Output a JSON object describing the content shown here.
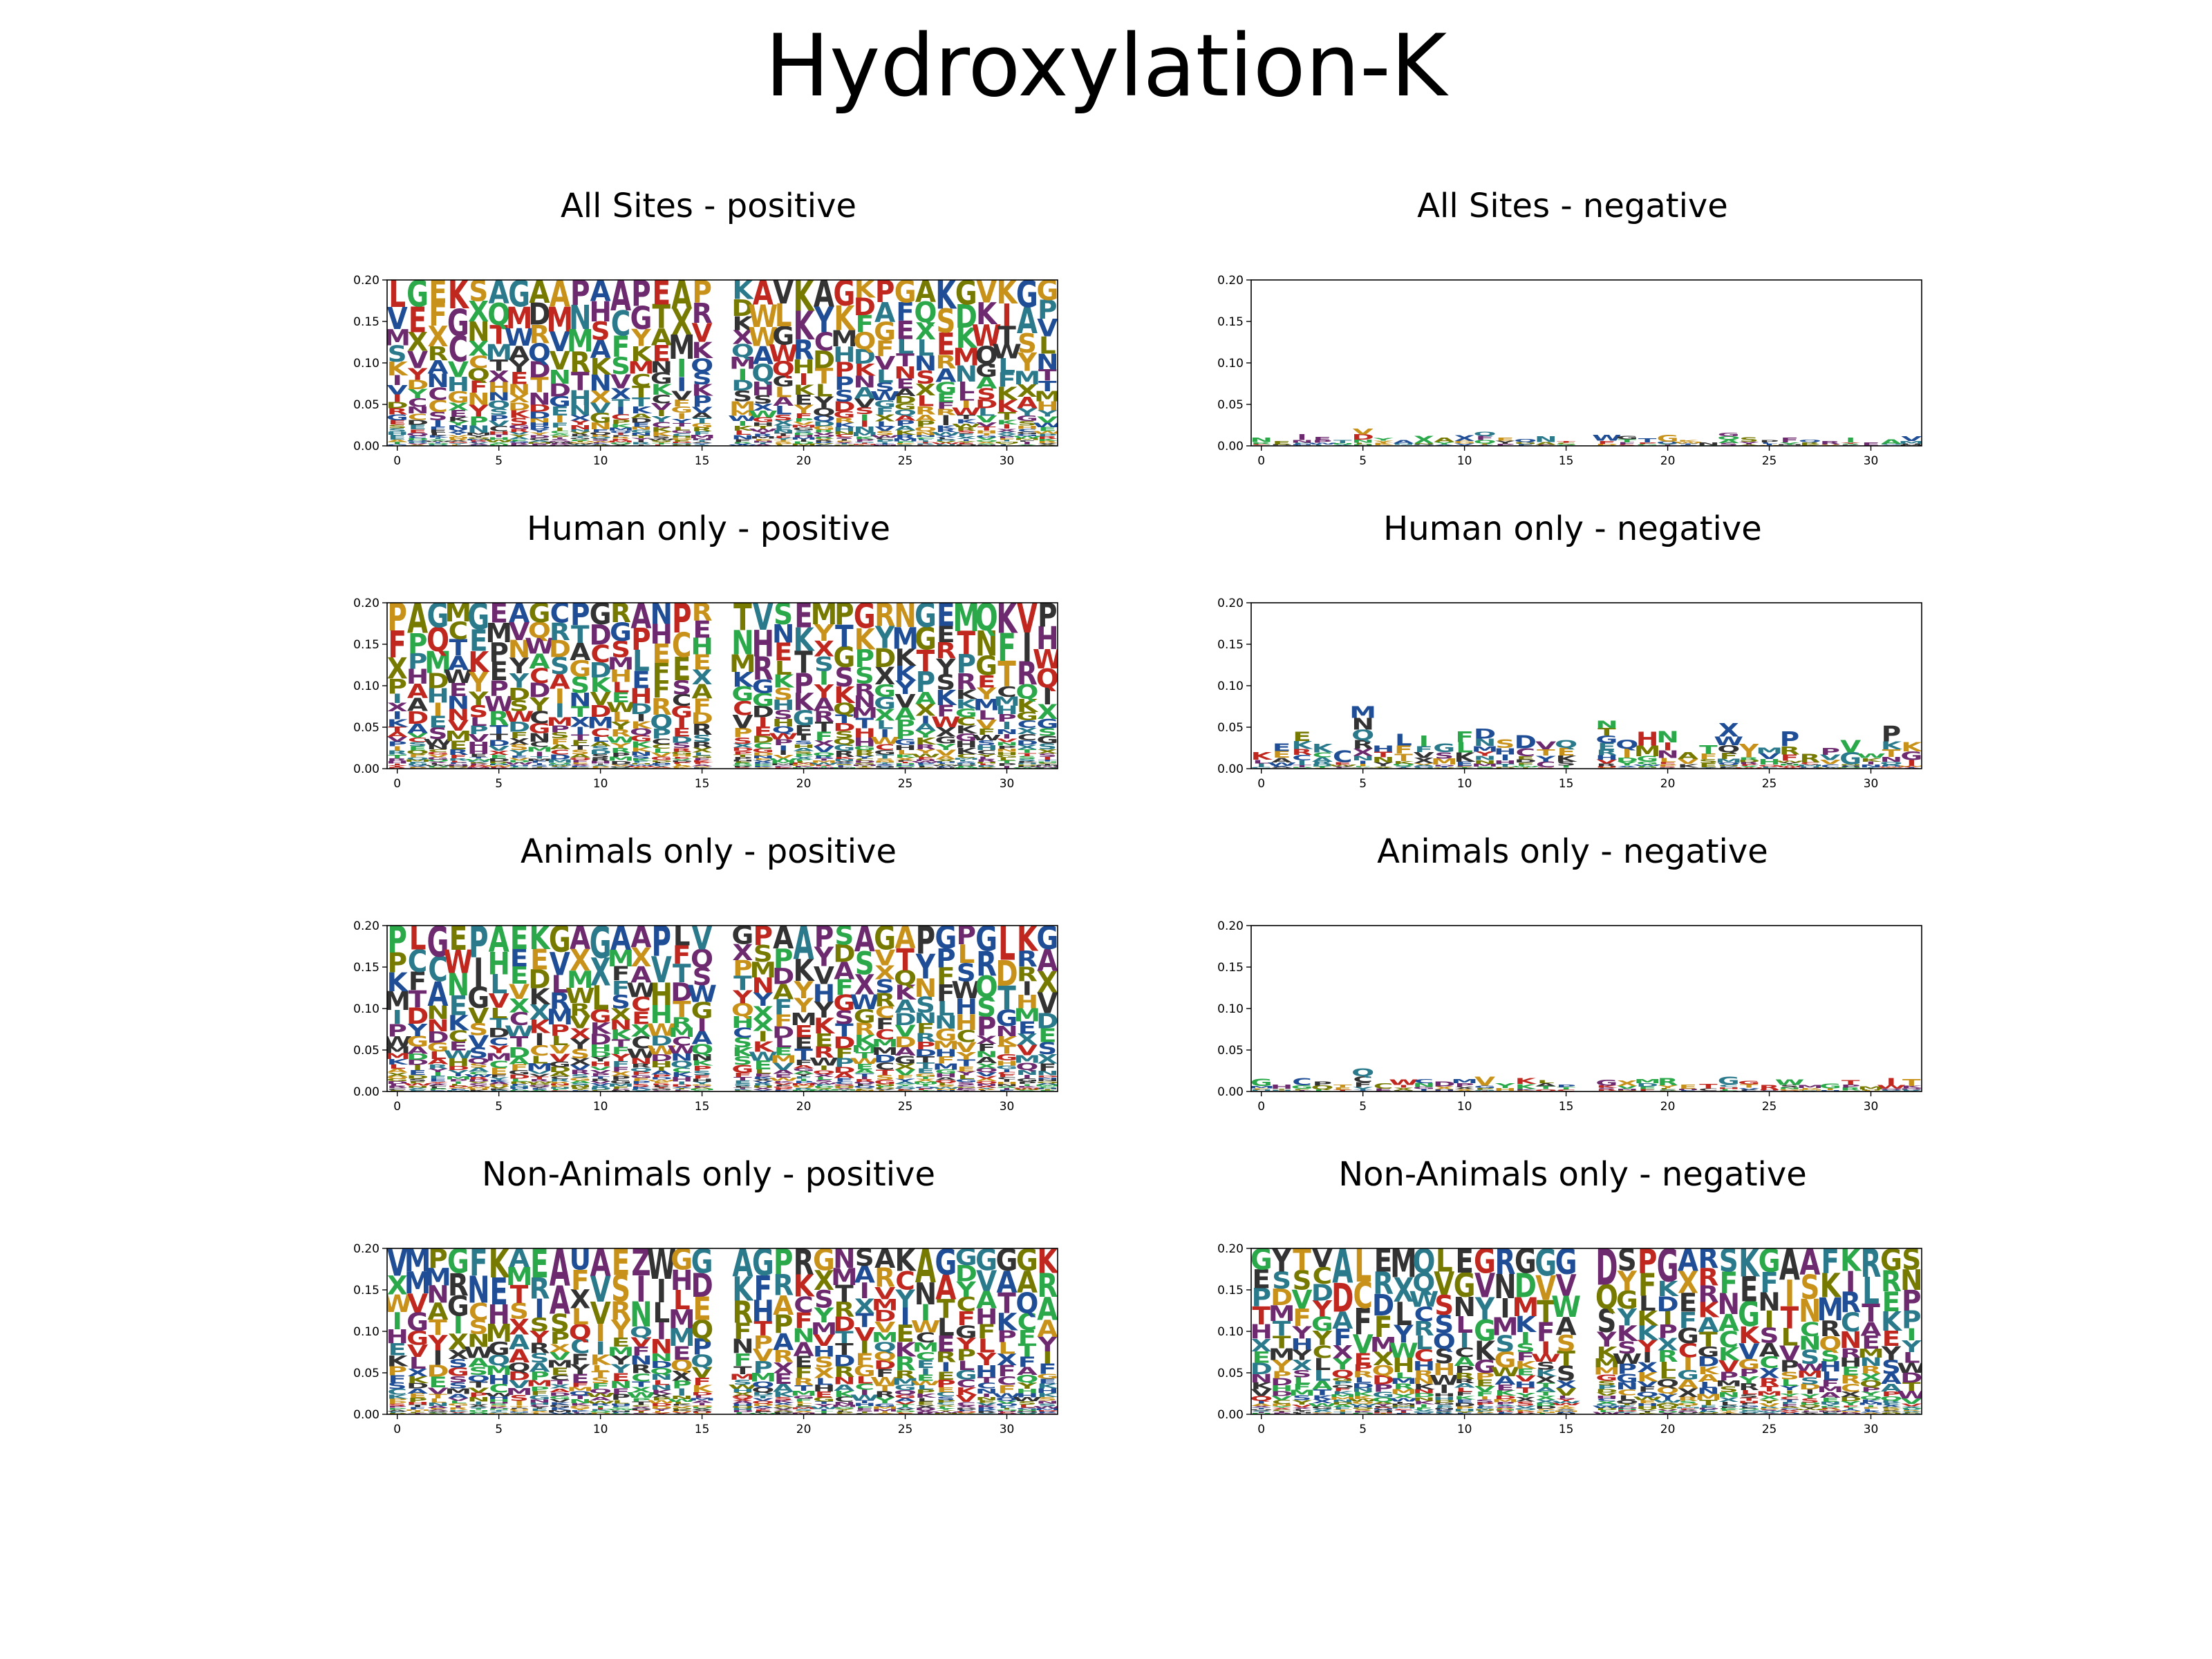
{
  "title": "Hydroxylation-K",
  "colors": {
    "palette": [
      "#1f4e96",
      "#c0271f",
      "#777a00",
      "#2ba84a",
      "#6d2a6f",
      "#2a7a8c",
      "#c8921a",
      "#333333"
    ]
  },
  "chart_data": [
    {
      "type": "logo",
      "title": "All Sites - positive",
      "xlim": [
        -0.5,
        32.5
      ],
      "ylim": [
        0,
        0.2
      ],
      "xticks": [
        0,
        5,
        10,
        15,
        20,
        25,
        30
      ],
      "xtick_labels": [
        "0",
        "5",
        "10",
        "15",
        "20",
        "25",
        "30"
      ],
      "yticks": [
        0,
        0.05,
        0.1,
        0.15,
        0.2
      ],
      "ytick_labels": [
        "0.00",
        "0.05",
        "0.10",
        "0.15",
        "0.20"
      ],
      "empty_positions": [
        16
      ],
      "stack_height": 0.2,
      "top_letters": "LGEKSAGAAPAAPEAPAKAVKAGKPGAKGVKGG"
    },
    {
      "type": "logo",
      "title": "All Sites - negative",
      "xlim": [
        -0.5,
        32.5
      ],
      "ylim": [
        0,
        0.2
      ],
      "xticks": [
        0,
        5,
        10,
        15,
        20,
        25,
        30
      ],
      "xtick_labels": [
        "0",
        "5",
        "10",
        "15",
        "20",
        "25",
        "30"
      ],
      "yticks": [
        0,
        0.05,
        0.1,
        0.15,
        0.2
      ],
      "ytick_labels": [
        "0.00",
        "0.05",
        "0.10",
        "0.15",
        "0.20"
      ],
      "empty_positions": [
        16
      ],
      "column_heights": [
        0.01,
        0.006,
        0.014,
        0.011,
        0.007,
        0.021,
        0.009,
        0.007,
        0.012,
        0.01,
        0.013,
        0.017,
        0.01,
        0.008,
        0.012,
        0.006,
        0,
        0.013,
        0.012,
        0.009,
        0.013,
        0.007,
        0.004,
        0.016,
        0.01,
        0.007,
        0.01,
        0.007,
        0.006,
        0.01,
        0.004,
        0.008,
        0.012
      ]
    },
    {
      "type": "logo",
      "title": "Human only - positive",
      "xlim": [
        -0.5,
        32.5
      ],
      "ylim": [
        0,
        0.2
      ],
      "xticks": [
        0,
        5,
        10,
        15,
        20,
        25,
        30
      ],
      "xtick_labels": [
        "0",
        "5",
        "10",
        "15",
        "20",
        "25",
        "30"
      ],
      "yticks": [
        0,
        0.05,
        0.1,
        0.15,
        0.2
      ],
      "ytick_labels": [
        "0.00",
        "0.05",
        "0.10",
        "0.15",
        "0.20"
      ],
      "empty_positions": [
        16
      ],
      "stack_height": 0.2,
      "top_letters": "PAGMGEAGCPGRANPRGTVSEMPGRNGEMQKVP"
    },
    {
      "type": "logo",
      "title": "Human only - negative",
      "xlim": [
        -0.5,
        32.5
      ],
      "ylim": [
        0,
        0.2
      ],
      "xticks": [
        0,
        5,
        10,
        15,
        20,
        25,
        30
      ],
      "xtick_labels": [
        "0",
        "5",
        "10",
        "15",
        "20",
        "25",
        "30"
      ],
      "yticks": [
        0,
        0.05,
        0.1,
        0.15,
        0.2
      ],
      "ytick_labels": [
        "0.00",
        "0.05",
        "0.10",
        "0.15",
        "0.20"
      ],
      "empty_positions": [
        16
      ],
      "column_heights": [
        0.02,
        0.03,
        0.045,
        0.03,
        0.022,
        0.075,
        0.028,
        0.042,
        0.04,
        0.03,
        0.045,
        0.048,
        0.035,
        0.04,
        0.033,
        0.035,
        0,
        0.058,
        0.035,
        0.045,
        0.045,
        0.02,
        0.028,
        0.055,
        0.03,
        0.025,
        0.045,
        0.018,
        0.025,
        0.035,
        0.018,
        0.052,
        0.032
      ]
    },
    {
      "type": "logo",
      "title": "Animals only - positive",
      "xlim": [
        -0.5,
        32.5
      ],
      "ylim": [
        0,
        0.2
      ],
      "xticks": [
        0,
        5,
        10,
        15,
        20,
        25,
        30
      ],
      "xtick_labels": [
        "0",
        "5",
        "10",
        "15",
        "20",
        "25",
        "30"
      ],
      "yticks": [
        0,
        0.05,
        0.1,
        0.15,
        0.2
      ],
      "ytick_labels": [
        "0.00",
        "0.05",
        "0.10",
        "0.15",
        "0.20"
      ],
      "empty_positions": [
        16
      ],
      "stack_height": 0.2,
      "top_letters": "PLGEPAEKGAGAAPLVAGPAAPSAGAPGPGLKG"
    },
    {
      "type": "logo",
      "title": "Animals only - negative",
      "xlim": [
        -0.5,
        32.5
      ],
      "ylim": [
        0,
        0.2
      ],
      "xticks": [
        0,
        5,
        10,
        15,
        20,
        25,
        30
      ],
      "xtick_labels": [
        "0",
        "5",
        "10",
        "15",
        "20",
        "25",
        "30"
      ],
      "yticks": [
        0,
        0.05,
        0.1,
        0.15,
        0.2
      ],
      "ytick_labels": [
        "0.00",
        "0.05",
        "0.10",
        "0.15",
        "0.20"
      ],
      "empty_positions": [
        16
      ],
      "column_heights": [
        0.015,
        0.008,
        0.016,
        0.012,
        0.008,
        0.028,
        0.01,
        0.014,
        0.015,
        0.012,
        0.015,
        0.018,
        0.01,
        0.016,
        0.014,
        0.008,
        0,
        0.014,
        0.013,
        0.015,
        0.016,
        0.008,
        0.009,
        0.018,
        0.013,
        0.008,
        0.014,
        0.008,
        0.01,
        0.014,
        0.006,
        0.016,
        0.015
      ]
    },
    {
      "type": "logo",
      "title": "Non-Animals only - positive",
      "xlim": [
        -0.5,
        32.5
      ],
      "ylim": [
        0,
        0.2
      ],
      "xticks": [
        0,
        5,
        10,
        15,
        20,
        25,
        30
      ],
      "xtick_labels": [
        "0",
        "5",
        "10",
        "15",
        "20",
        "25",
        "30"
      ],
      "yticks": [
        0,
        0.05,
        0.1,
        0.15,
        0.2
      ],
      "ytick_labels": [
        "0.00",
        "0.05",
        "0.10",
        "0.15",
        "0.20"
      ],
      "empty_positions": [
        16
      ],
      "stack_height": 0.2,
      "top_letters": "VMPGFKAEAUAEZWGGUAGPRGNSAKAGGGGGK"
    },
    {
      "type": "logo",
      "title": "Non-Animals only - negative",
      "xlim": [
        -0.5,
        32.5
      ],
      "ylim": [
        0,
        0.2
      ],
      "xticks": [
        0,
        5,
        10,
        15,
        20,
        25,
        30
      ],
      "xtick_labels": [
        "0",
        "5",
        "10",
        "15",
        "20",
        "25",
        "30"
      ],
      "yticks": [
        0,
        0.05,
        0.1,
        0.15,
        0.2
      ],
      "ytick_labels": [
        "0.00",
        "0.05",
        "0.10",
        "0.15",
        "0.20"
      ],
      "empty_positions": [
        16
      ],
      "stack_height": 0.2,
      "top_letters": "GYTVALEMQLEGRGGGVDSPGARSKGAAFKRGS"
    }
  ]
}
